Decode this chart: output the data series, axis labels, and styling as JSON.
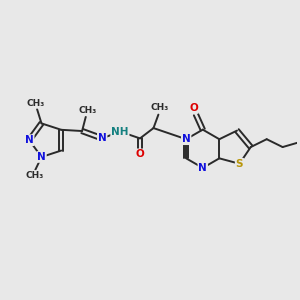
{
  "bg_color": "#e8e8e8",
  "bond_color": "#2a2a2a",
  "bond_width": 1.4,
  "atom_colors": {
    "N": "#1010dd",
    "O": "#dd0000",
    "S": "#b8960a",
    "NH": "#148080",
    "C": "#2a2a2a"
  },
  "font_size": 7.5,
  "fig_width": 3.0,
  "fig_height": 3.0,
  "xlim": [
    0,
    12
  ],
  "ylim": [
    0,
    10
  ]
}
